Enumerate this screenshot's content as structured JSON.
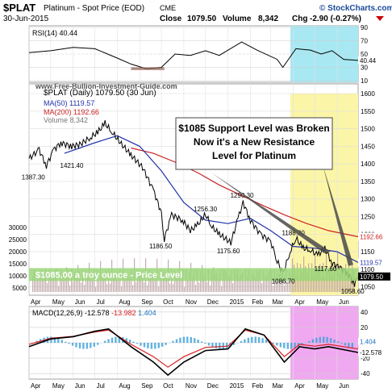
{
  "header": {
    "ticker": "$PLAT",
    "name": "Platinum - Spot Price (EOD)",
    "exchange": "CME",
    "date": "30-Jun-2015",
    "close_label": "Close",
    "close_value": "1079.50",
    "volume_label": "Volume",
    "volume_value": "8,342",
    "chg_label": "Chg",
    "chg_value": "-2.90 (-0.27%)",
    "brand": "© StockCharts.com",
    "site": "www.Free-Bullion-Investment-Guide.com"
  },
  "colors": {
    "price": "#000000",
    "ma50": "#2233aa",
    "ma200": "#cc2222",
    "cyan_zone": "#a8e8f2",
    "yellow_zone": "#fbf5a8",
    "green_band": "#9bd67a",
    "volume": "#b79a9a",
    "macd_pink": "#ee88ee",
    "annotation_arrow": "#4a4a4a"
  },
  "rsi_panel": {
    "label": "RSI(14) 40.44",
    "ticks": [
      "90",
      "70",
      "50",
      "30",
      "10"
    ],
    "current": "40.44"
  },
  "price_panel": {
    "legend": {
      "main": "$PLAT (Daily) 1079.50 (30 Jun)",
      "ma50": "MA(50) 1119.57",
      "ma200": "MA(200) 1192.66",
      "volume": "Volume 8,342"
    },
    "right_ticks": [
      "1600",
      "1550",
      "1500",
      "1450",
      "1400",
      "1350",
      "1300",
      "1250",
      "1200",
      "1150",
      "1100",
      "1050"
    ],
    "left_volume_ticks": [
      "30000",
      "25000",
      "20000",
      "15000",
      "10000",
      "5000"
    ],
    "value_tags": {
      "ma200": "1192.66",
      "ma50": "1119.57",
      "price": "1079.50"
    },
    "annotations": {
      "support": "$1085 Support Level was Broken Now it's a New Resistance Level for Platinum",
      "band": "$1085.00 a troy ounce - Price Level"
    },
    "price_labels": [
      "1421.40",
      "1387.30",
      "1186.50",
      "1256.30",
      "1175.60",
      "1290.30",
      "1188.20",
      "1117.60",
      "1086.70",
      "1058.60"
    ]
  },
  "macd_panel": {
    "label_prefix": "MACD(12,26,9)",
    "v1": "-12.578",
    "v2": "-13.982",
    "v3": "1.404",
    "ticks": [
      "40",
      "20",
      "0",
      "-20",
      "-40"
    ],
    "tags": [
      "1.404",
      "-12.578"
    ]
  },
  "x_axis": {
    "top": [
      "Apr",
      "May",
      "Jun",
      "Jul",
      "Aug",
      "Sep",
      "Oct",
      "Nov",
      "Dec",
      "2015",
      "Feb",
      "Mar",
      "Apr",
      "May",
      "Jun"
    ],
    "bottom": [
      "Apr",
      "May",
      "Jun",
      "Jul",
      "Aug",
      "Sep",
      "Oct",
      "Nov",
      "Dec",
      "2015",
      "Feb",
      "Mar",
      "Apr",
      "May",
      "Jun"
    ]
  },
  "chart_data": {
    "type": "line",
    "title": "Platinum - Spot Price (EOD)",
    "x_range": [
      "2014-04",
      "2015-06"
    ],
    "ylim": [
      1040,
      1600
    ],
    "series": [
      {
        "name": "$PLAT (Daily)",
        "points": [
          [
            "2014-04-01",
            1415
          ],
          [
            "2014-04-15",
            1440
          ],
          [
            "2014-04-25",
            1395
          ],
          [
            "2014-05-05",
            1440
          ],
          [
            "2014-05-15",
            1460
          ],
          [
            "2014-05-30",
            1450
          ],
          [
            "2014-06-10",
            1455
          ],
          [
            "2014-06-25",
            1475
          ],
          [
            "2014-07-05",
            1490
          ],
          [
            "2014-07-15",
            1515
          ],
          [
            "2014-07-25",
            1490
          ],
          [
            "2014-08-05",
            1460
          ],
          [
            "2014-08-20",
            1425
          ],
          [
            "2014-09-05",
            1390
          ],
          [
            "2014-09-20",
            1325
          ],
          [
            "2014-10-01",
            1260
          ],
          [
            "2014-10-05",
            1186.5
          ],
          [
            "2014-10-15",
            1255
          ],
          [
            "2014-10-30",
            1240
          ],
          [
            "2014-11-10",
            1210
          ],
          [
            "2014-11-20",
            1226
          ],
          [
            "2014-12-01",
            1256.3
          ],
          [
            "2014-12-10",
            1220
          ],
          [
            "2014-12-20",
            1200
          ],
          [
            "2015-01-05",
            1175.6
          ],
          [
            "2015-01-15",
            1245
          ],
          [
            "2015-01-22",
            1290.3
          ],
          [
            "2015-02-01",
            1240
          ],
          [
            "2015-02-15",
            1200
          ],
          [
            "2015-03-01",
            1180
          ],
          [
            "2015-03-10",
            1125
          ],
          [
            "2015-03-18",
            1086.7
          ],
          [
            "2015-03-28",
            1150
          ],
          [
            "2015-04-05",
            1188.2
          ],
          [
            "2015-04-15",
            1160
          ],
          [
            "2015-04-25",
            1155
          ],
          [
            "2015-05-05",
            1140
          ],
          [
            "2015-05-15",
            1160
          ],
          [
            "2015-05-25",
            1117.6
          ],
          [
            "2015-06-05",
            1105
          ],
          [
            "2015-06-15",
            1090
          ],
          [
            "2015-06-25",
            1058.6
          ],
          [
            "2015-06-30",
            1079.5
          ]
        ]
      },
      {
        "name": "MA(50)",
        "points": [
          [
            "2014-05-20",
            1430
          ],
          [
            "2014-07-01",
            1460
          ],
          [
            "2014-08-01",
            1480
          ],
          [
            "2014-09-01",
            1450
          ],
          [
            "2014-10-01",
            1380
          ],
          [
            "2014-11-01",
            1290
          ],
          [
            "2014-12-01",
            1240
          ],
          [
            "2015-01-01",
            1230
          ],
          [
            "2015-02-01",
            1245
          ],
          [
            "2015-03-01",
            1210
          ],
          [
            "2015-04-01",
            1165
          ],
          [
            "2015-05-01",
            1160
          ],
          [
            "2015-06-01",
            1150
          ],
          [
            "2015-06-30",
            1119.57
          ]
        ]
      },
      {
        "name": "MA(200)",
        "points": [
          [
            "2014-08-20",
            1445
          ],
          [
            "2014-09-20",
            1430
          ],
          [
            "2014-10-20",
            1405
          ],
          [
            "2014-11-20",
            1375
          ],
          [
            "2014-12-20",
            1340
          ],
          [
            "2015-01-20",
            1310
          ],
          [
            "2015-02-20",
            1280
          ],
          [
            "2015-03-20",
            1255
          ],
          [
            "2015-04-20",
            1230
          ],
          [
            "2015-05-20",
            1210
          ],
          [
            "2015-06-30",
            1192.66
          ]
        ]
      }
    ],
    "reference_lines": [
      {
        "label": "$1085.00 a troy ounce - Price Level",
        "y": 1085
      }
    ],
    "rsi": {
      "ylim": [
        10,
        90
      ],
      "current": 40.44,
      "points": [
        [
          "2014-04-01",
          52
        ],
        [
          "2014-05-01",
          55
        ],
        [
          "2014-06-01",
          60
        ],
        [
          "2014-07-01",
          58
        ],
        [
          "2014-08-01",
          44
        ],
        [
          "2014-08-20",
          35
        ],
        [
          "2014-09-10",
          28
        ],
        [
          "2014-10-01",
          30
        ],
        [
          "2014-10-20",
          50
        ],
        [
          "2014-11-10",
          48
        ],
        [
          "2014-12-01",
          55
        ],
        [
          "2014-12-20",
          48
        ],
        [
          "2015-01-20",
          68
        ],
        [
          "2015-02-10",
          56
        ],
        [
          "2015-03-10",
          42
        ],
        [
          "2015-03-18",
          30
        ],
        [
          "2015-04-05",
          58
        ],
        [
          "2015-04-25",
          56
        ],
        [
          "2015-05-10",
          50
        ],
        [
          "2015-05-25",
          55
        ],
        [
          "2015-06-10",
          42
        ],
        [
          "2015-06-30",
          40.44
        ]
      ]
    },
    "macd": {
      "ylim": [
        -45,
        45
      ],
      "macd": -12.578,
      "signal": -13.982,
      "histogram": 1.404,
      "macd_points": [
        [
          "2014-04-01",
          -5
        ],
        [
          "2014-05-01",
          5
        ],
        [
          "2014-06-01",
          8
        ],
        [
          "2014-07-01",
          15
        ],
        [
          "2014-07-20",
          18
        ],
        [
          "2014-08-20",
          -5
        ],
        [
          "2014-09-20",
          -25
        ],
        [
          "2014-10-10",
          -42
        ],
        [
          "2014-11-01",
          -25
        ],
        [
          "2014-12-01",
          -10
        ],
        [
          "2015-01-01",
          -8
        ],
        [
          "2015-01-25",
          18
        ],
        [
          "2015-02-20",
          10
        ],
        [
          "2015-03-20",
          -25
        ],
        [
          "2015-04-10",
          -5
        ],
        [
          "2015-05-01",
          -8
        ],
        [
          "2015-05-20",
          -5
        ],
        [
          "2015-06-30",
          -12.578
        ]
      ]
    }
  }
}
